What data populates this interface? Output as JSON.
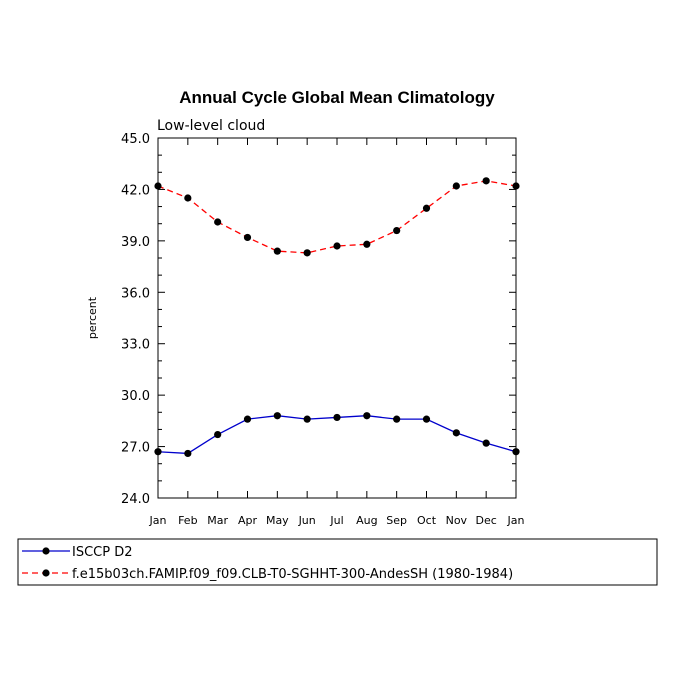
{
  "chart_data": {
    "type": "line",
    "title": "Annual Cycle Global Mean Climatology",
    "subtitle": "Low-level cloud",
    "ylabel": "percent",
    "xlabel": "",
    "categories": [
      "Jan",
      "Feb",
      "Mar",
      "Apr",
      "May",
      "Jun",
      "Jul",
      "Aug",
      "Sep",
      "Oct",
      "Nov",
      "Dec",
      "Jan"
    ],
    "ylim": [
      24.0,
      45.0
    ],
    "yticks": [
      "24.0",
      "27.0",
      "30.0",
      "33.0",
      "36.0",
      "39.0",
      "42.0",
      "45.0"
    ],
    "series": [
      {
        "name": "ISCCP D2",
        "color": "#0000cc",
        "dash": "solid",
        "values": [
          26.7,
          26.6,
          27.7,
          28.6,
          28.8,
          28.6,
          28.7,
          28.8,
          28.6,
          28.6,
          27.8,
          27.2,
          26.7
        ]
      },
      {
        "name": "f.e15b03ch.FAMIP.f09_f09.CLB-T0-SGHHT-300-AndesSH (1980-1984)",
        "color": "#ff0000",
        "dash": "dashed",
        "values": [
          42.2,
          41.5,
          40.1,
          39.2,
          38.4,
          38.3,
          38.7,
          38.8,
          39.6,
          40.9,
          42.2,
          42.5,
          42.2
        ]
      }
    ],
    "grid": false,
    "legend_position": "bottom"
  }
}
